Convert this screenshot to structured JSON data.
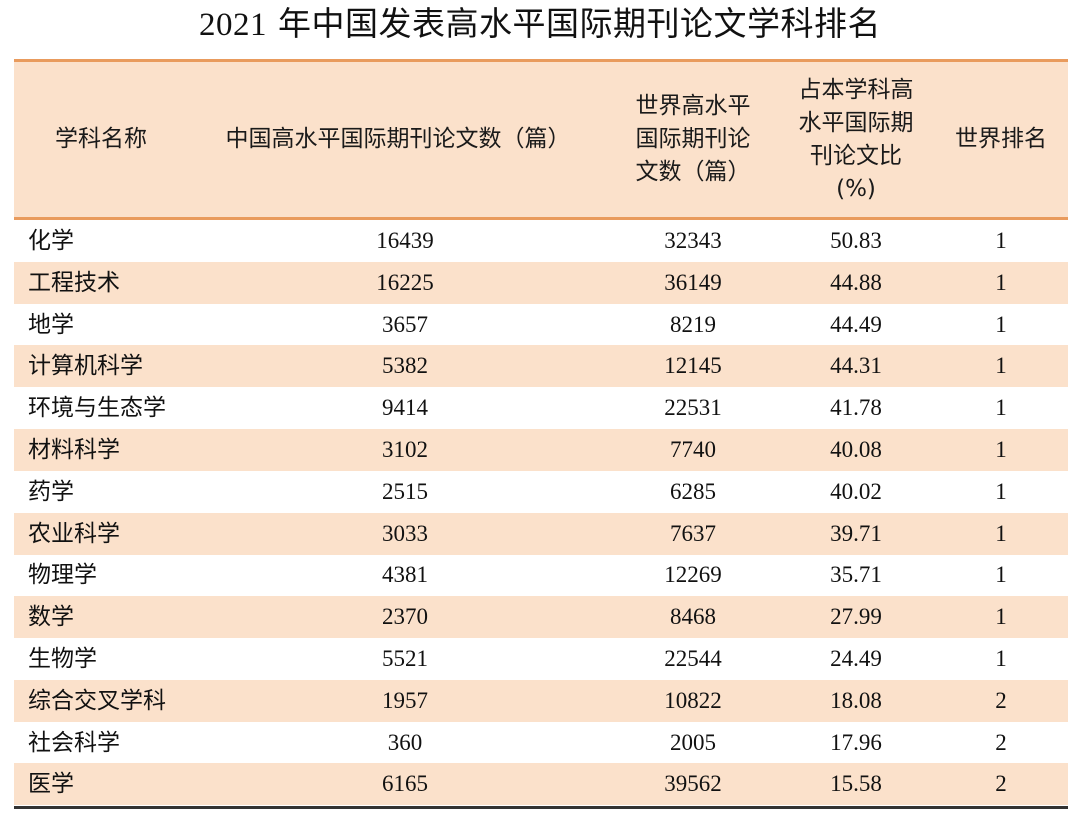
{
  "title": {
    "year": "2021",
    "text": "年中国发表高水平国际期刊论文学科排名"
  },
  "headers": {
    "subject": [
      "学科名称"
    ],
    "china_papers": [
      "中国高水平国际期刊论文数（篇）"
    ],
    "world_papers": [
      "世界高水平",
      "国际期刊论",
      "文数（篇）"
    ],
    "share": [
      "占本学科高",
      "水平国际期",
      "刊论文比",
      "(%)"
    ],
    "rank": [
      "世界排名"
    ]
  },
  "rows": [
    {
      "subject": "化学",
      "china": "16439",
      "world": "32343",
      "share": "50.83",
      "rank": "1"
    },
    {
      "subject": "工程技术",
      "china": "16225",
      "world": "36149",
      "share": "44.88",
      "rank": "1"
    },
    {
      "subject": "地学",
      "china": "3657",
      "world": "8219",
      "share": "44.49",
      "rank": "1"
    },
    {
      "subject": "计算机科学",
      "china": "5382",
      "world": "12145",
      "share": "44.31",
      "rank": "1"
    },
    {
      "subject": "环境与生态学",
      "china": "9414",
      "world": "22531",
      "share": "41.78",
      "rank": "1"
    },
    {
      "subject": "材料科学",
      "china": "3102",
      "world": "7740",
      "share": "40.08",
      "rank": "1"
    },
    {
      "subject": "药学",
      "china": "2515",
      "world": "6285",
      "share": "40.02",
      "rank": "1"
    },
    {
      "subject": "农业科学",
      "china": "3033",
      "world": "7637",
      "share": "39.71",
      "rank": "1"
    },
    {
      "subject": "物理学",
      "china": "4381",
      "world": "12269",
      "share": "35.71",
      "rank": "1"
    },
    {
      "subject": "数学",
      "china": "2370",
      "world": "8468",
      "share": "27.99",
      "rank": "1"
    },
    {
      "subject": "生物学",
      "china": "5521",
      "world": "22544",
      "share": "24.49",
      "rank": "1"
    },
    {
      "subject": "综合交叉学科",
      "china": "1957",
      "world": "10822",
      "share": "18.08",
      "rank": "2"
    },
    {
      "subject": "社会科学",
      "china": "360",
      "world": "2005",
      "share": "17.96",
      "rank": "2"
    },
    {
      "subject": "医学",
      "china": "6165",
      "world": "39562",
      "share": "15.58",
      "rank": "2"
    }
  ]
}
